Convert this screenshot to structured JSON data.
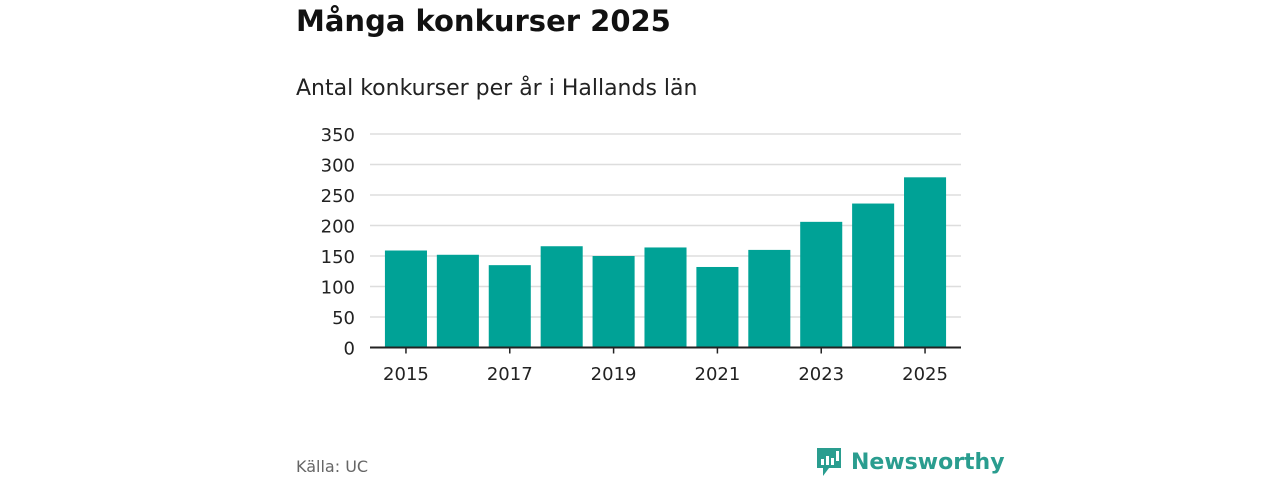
{
  "chart_data": {
    "type": "bar",
    "title": "Många konkurser 2025",
    "subtitle": "Antal konkurser per år i Hallands län",
    "categories": [
      "2015",
      "2016",
      "2017",
      "2018",
      "2019",
      "2020",
      "2021",
      "2022",
      "2023",
      "2024",
      "2025"
    ],
    "values": [
      159,
      152,
      135,
      166,
      150,
      164,
      132,
      160,
      206,
      236,
      279
    ],
    "xtick_labels": [
      "2015",
      "2017",
      "2019",
      "2021",
      "2023",
      "2025"
    ],
    "yticks": [
      "0",
      "50",
      "100",
      "150",
      "200",
      "250",
      "300",
      "350"
    ],
    "ylim": [
      0,
      350
    ],
    "xlabel": "",
    "ylabel": "",
    "grid": true,
    "bar_color": "#00a296"
  },
  "source": "Källa: UC",
  "logo": "Newsworthy",
  "logo_color": "#2a9d8f"
}
